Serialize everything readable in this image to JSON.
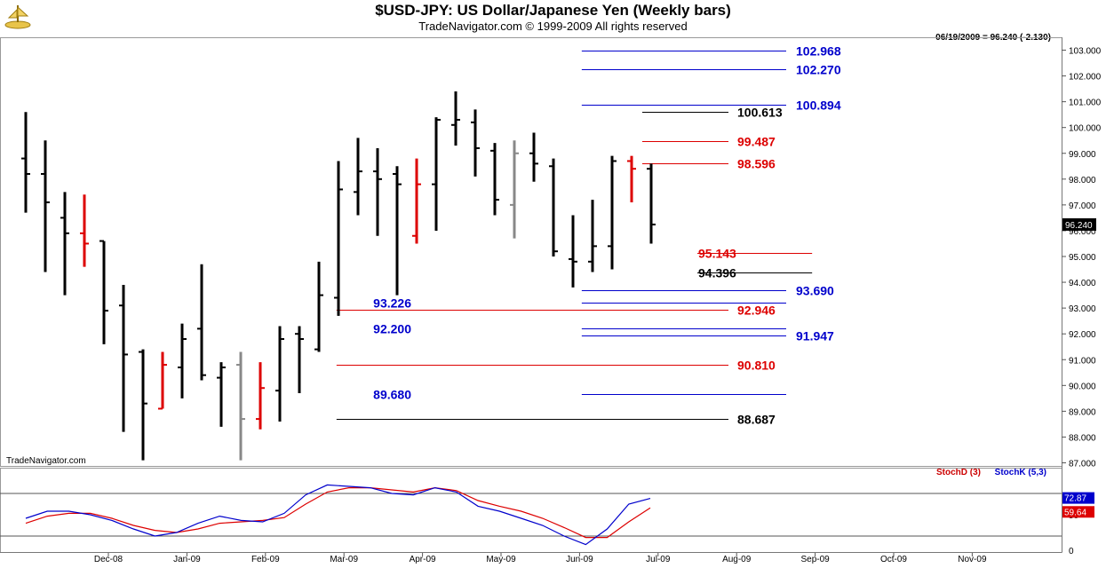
{
  "chart_data": {
    "type": "bar",
    "title": "$USD-JPY:  US Dollar/Japanese Yen  (Weekly bars)",
    "subtitle": "TradeNavigator.com © 1999-2009 All rights reserved",
    "quote": "06/19/2009 = 96.240 (-2.130)",
    "watermark": "TradeNavigator.com",
    "last_price_label": "96.240",
    "y_range": [
      87.0,
      103.0
    ],
    "y_ticks": [
      "87.000",
      "88.000",
      "89.000",
      "90.000",
      "91.000",
      "92.000",
      "93.000",
      "94.000",
      "95.000",
      "96.000",
      "97.000",
      "98.000",
      "99.000",
      "100.000",
      "101.000",
      "102.000",
      "103.000"
    ],
    "x_labels": [
      "Dec-08",
      "Jan-09",
      "Feb-09",
      "Mar-09",
      "Apr-09",
      "May-09",
      "Jun-09",
      "Jul-09",
      "Aug-09",
      "Sep-09",
      "Oct-09",
      "Nov-09"
    ],
    "bars": [
      {
        "high": 100.6,
        "low": 96.7,
        "open": 98.8,
        "close": 98.2,
        "color": "black"
      },
      {
        "high": 99.5,
        "low": 94.4,
        "open": 98.2,
        "close": 97.1,
        "color": "black"
      },
      {
        "high": 97.5,
        "low": 93.5,
        "open": 96.5,
        "close": 95.9,
        "color": "black"
      },
      {
        "high": 97.4,
        "low": 94.6,
        "open": 95.9,
        "close": 95.5,
        "color": "red"
      },
      {
        "high": 95.6,
        "low": 91.6,
        "open": 95.6,
        "close": 92.9,
        "color": "black"
      },
      {
        "high": 93.9,
        "low": 88.2,
        "open": 93.1,
        "close": 91.2,
        "color": "black"
      },
      {
        "high": 91.4,
        "low": 87.1,
        "open": 91.3,
        "close": 89.3,
        "color": "black"
      },
      {
        "high": 91.3,
        "low": 89.1,
        "open": 89.1,
        "close": 90.8,
        "color": "red"
      },
      {
        "high": 92.4,
        "low": 89.5,
        "open": 90.7,
        "close": 91.8,
        "color": "black"
      },
      {
        "high": 94.7,
        "low": 90.2,
        "open": 92.2,
        "close": 90.4,
        "color": "black"
      },
      {
        "high": 90.9,
        "low": 88.4,
        "open": 90.3,
        "close": 90.7,
        "color": "black"
      },
      {
        "high": 91.3,
        "low": 87.1,
        "open": 90.8,
        "close": 88.7,
        "color": "gray"
      },
      {
        "high": 90.9,
        "low": 88.3,
        "open": 88.7,
        "close": 89.9,
        "color": "red"
      },
      {
        "high": 92.3,
        "low": 88.6,
        "open": 89.8,
        "close": 91.8,
        "color": "black"
      },
      {
        "high": 92.3,
        "low": 89.7,
        "open": 92.0,
        "close": 91.8,
        "color": "black"
      },
      {
        "high": 94.8,
        "low": 91.3,
        "open": 91.4,
        "close": 93.5,
        "color": "black"
      },
      {
        "high": 98.7,
        "low": 92.7,
        "open": 93.4,
        "close": 97.6,
        "color": "black"
      },
      {
        "high": 99.6,
        "low": 96.6,
        "open": 97.5,
        "close": 98.3,
        "color": "black"
      },
      {
        "high": 99.2,
        "low": 95.8,
        "open": 98.3,
        "close": 98.0,
        "color": "black"
      },
      {
        "high": 98.5,
        "low": 93.5,
        "open": 98.2,
        "close": 97.8,
        "color": "black"
      },
      {
        "high": 98.8,
        "low": 95.5,
        "open": 95.8,
        "close": 97.8,
        "color": "red"
      },
      {
        "high": 100.4,
        "low": 96.0,
        "open": 97.8,
        "close": 100.3,
        "color": "black"
      },
      {
        "high": 101.4,
        "low": 99.3,
        "open": 100.1,
        "close": 100.3,
        "color": "black"
      },
      {
        "high": 100.7,
        "low": 98.1,
        "open": 100.2,
        "close": 99.2,
        "color": "black"
      },
      {
        "high": 99.4,
        "low": 96.6,
        "open": 99.1,
        "close": 97.2,
        "color": "black"
      },
      {
        "high": 99.5,
        "low": 95.7,
        "open": 97.0,
        "close": 99.0,
        "color": "gray"
      },
      {
        "high": 99.8,
        "low": 97.9,
        "open": 99.0,
        "close": 98.6,
        "color": "black"
      },
      {
        "high": 98.8,
        "low": 95.0,
        "open": 98.5,
        "close": 95.2,
        "color": "black"
      },
      {
        "high": 96.6,
        "low": 93.8,
        "open": 94.9,
        "close": 94.8,
        "color": "black"
      },
      {
        "high": 97.2,
        "low": 94.4,
        "open": 94.8,
        "close": 95.4,
        "color": "black"
      },
      {
        "high": 98.9,
        "low": 94.5,
        "open": 95.4,
        "close": 98.7,
        "color": "black"
      },
      {
        "high": 98.9,
        "low": 97.1,
        "open": 98.7,
        "close": 98.4,
        "color": "red"
      },
      {
        "high": 98.6,
        "low": 95.5,
        "open": 98.4,
        "close": 96.24,
        "color": "black"
      }
    ],
    "levels": [
      {
        "value": 102.968,
        "label": "102.968",
        "color": "#0000cc",
        "side": "right",
        "from": 0.548
      },
      {
        "value": 102.27,
        "label": "102.270",
        "color": "#0000cc",
        "side": "right",
        "from": 0.548
      },
      {
        "value": 100.894,
        "label": "100.894",
        "color": "#0000cc",
        "side": "right",
        "from": 0.548
      },
      {
        "value": 100.613,
        "label": "100.613",
        "color": "#000000",
        "side": "mid",
        "from": 0.605
      },
      {
        "value": 99.487,
        "label": "99.487",
        "color": "#dd0000",
        "side": "mid",
        "from": 0.605
      },
      {
        "value": 98.596,
        "label": "98.596",
        "color": "#dd0000",
        "side": "mid",
        "from": 0.605
      },
      {
        "value": 95.143,
        "label": "95.143",
        "color": "#dd0000",
        "side": "mid2",
        "from": 0.765
      },
      {
        "value": 94.396,
        "label": "94.396",
        "color": "#000000",
        "side": "mid2",
        "from": 0.765
      },
      {
        "value": 93.69,
        "label": "93.690",
        "color": "#0000cc",
        "side": "right",
        "from": 0.548
      },
      {
        "value": 93.226,
        "label": "93.226",
        "color": "#0000cc",
        "side": "leftlabel",
        "from": 0.548
      },
      {
        "value": 92.946,
        "label": "92.946",
        "color": "#dd0000",
        "side": "mid",
        "from": 0.317
      },
      {
        "value": 92.2,
        "label": "92.200",
        "color": "#0000cc",
        "side": "leftlabel",
        "from": 0.548
      },
      {
        "value": 91.947,
        "label": "91.947",
        "color": "#0000cc",
        "side": "right",
        "from": 0.548
      },
      {
        "value": 90.81,
        "label": "90.810",
        "color": "#dd0000",
        "side": "mid",
        "from": 0.317
      },
      {
        "value": 89.68,
        "label": "89.680",
        "color": "#0000cc",
        "side": "leftlabel",
        "from": 0.548
      },
      {
        "value": 88.687,
        "label": "88.687",
        "color": "#000000",
        "side": "mid",
        "from": 0.317
      }
    ],
    "stochastic": {
      "legend_d": "StochD (3)",
      "legend_k": "StochK (5,3)",
      "label_k": "72.87",
      "label_d": "59.64",
      "axis_ticks": [
        "0",
        "50"
      ],
      "y_range": [
        0,
        100
      ],
      "k_values": [
        45,
        55,
        55,
        50,
        42,
        30,
        20,
        25,
        38,
        48,
        42,
        40,
        52,
        78,
        92,
        90,
        88,
        80,
        78,
        88,
        82,
        62,
        55,
        45,
        35,
        20,
        8,
        30,
        65,
        73
      ],
      "d_values": [
        38,
        48,
        52,
        52,
        45,
        35,
        28,
        25,
        30,
        38,
        40,
        42,
        46,
        65,
        82,
        88,
        88,
        85,
        82,
        88,
        84,
        70,
        62,
        55,
        45,
        32,
        18,
        18,
        40,
        59.64
      ]
    }
  }
}
